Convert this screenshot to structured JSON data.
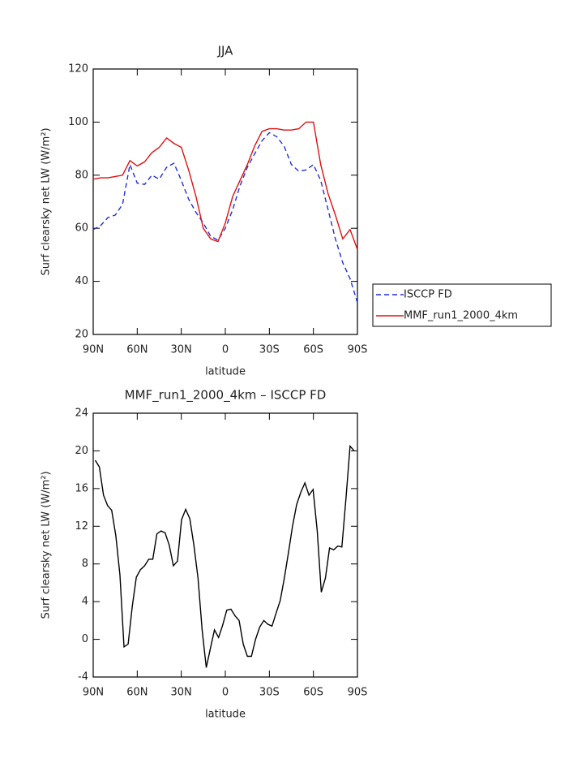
{
  "chart_data": [
    {
      "type": "line",
      "title": "JJA",
      "xlabel": "latitude",
      "ylabel": "Surf clearsky net LW (W/m²)",
      "x": [
        90,
        85,
        80,
        75,
        70,
        65,
        60,
        55,
        50,
        45,
        40,
        35,
        30,
        25,
        20,
        15,
        10,
        5,
        0,
        -5,
        -10,
        -15,
        -20,
        -25,
        -30,
        -35,
        -40,
        -45,
        -50,
        -55,
        -60,
        -65,
        -70,
        -75,
        -80,
        -85,
        -90
      ],
      "series": [
        {
          "name": "ISCCP FD",
          "color": "#1f2fd8",
          "line_style": "dashed",
          "values": [
            59.5,
            61,
            64,
            65,
            69,
            84,
            77,
            76.5,
            80,
            78.5,
            83,
            84.5,
            78,
            71,
            66,
            62,
            57,
            55.5,
            60,
            67,
            76,
            83,
            88,
            93,
            96,
            94.5,
            91,
            84,
            81.5,
            82,
            84,
            78,
            67,
            56,
            47,
            41,
            32
          ]
        },
        {
          "name": "MMF_run1_2000_4km",
          "color": "#e01010",
          "line_style": "solid",
          "values": [
            78.5,
            79,
            79,
            79.5,
            80,
            85.5,
            83.5,
            85,
            88.5,
            90.5,
            94,
            92,
            90.5,
            82,
            72,
            60,
            56,
            55,
            62,
            72,
            78,
            84,
            91,
            96.5,
            97.5,
            97.5,
            97,
            97,
            97.5,
            100,
            100,
            84,
            73,
            65,
            56,
            59.5,
            52
          ]
        }
      ],
      "xlim": [
        90,
        -90
      ],
      "xticks": [
        {
          "value": 90,
          "label": "90N"
        },
        {
          "value": 60,
          "label": "60N"
        },
        {
          "value": 30,
          "label": "30N"
        },
        0,
        {
          "value": -30,
          "label": "30S"
        },
        {
          "value": -60,
          "label": "60S"
        },
        {
          "value": -90,
          "label": "90S"
        }
      ],
      "ylim": [
        20,
        120
      ],
      "yticks": [
        20,
        40,
        60,
        80,
        100,
        120
      ],
      "legend": "outside-right"
    },
    {
      "type": "line",
      "title": "MMF_run1_2000_4km – ISCCP FD",
      "xlabel": "latitude",
      "ylabel": "Surf clearsky net LW (W/m²)",
      "x": [
        88.6,
        85.8,
        83,
        80.2,
        77.4,
        74.6,
        71.8,
        69,
        66.2,
        63.4,
        60.6,
        57.8,
        55,
        52.2,
        49.4,
        46.6,
        43.8,
        41,
        38.2,
        35.4,
        32.6,
        29.8,
        27,
        24.2,
        21.4,
        18.6,
        15.8,
        13,
        10.2,
        7.4,
        4.6,
        1.8,
        -1,
        -3.8,
        -6.6,
        -9.4,
        -12.2,
        -15,
        -17.8,
        -20.6,
        -23.4,
        -26.2,
        -29,
        -31.8,
        -34.6,
        -37.4,
        -40.2,
        -43,
        -45.8,
        -48.6,
        -51.4,
        -54.2,
        -57,
        -59.8,
        -62.6,
        -65.4,
        -68.2,
        -71,
        -73.8,
        -76.6,
        -79.4,
        -82.2,
        -85,
        -87.8
      ],
      "series": [
        {
          "name": null,
          "color": "#000000",
          "line_style": "solid",
          "values": [
            19,
            18.3,
            15.3,
            14.2,
            13.7,
            11,
            6.8,
            -0.8,
            -0.5,
            3.5,
            6.6,
            7.4,
            7.8,
            8.5,
            8.5,
            11.2,
            11.5,
            11.3,
            10,
            7.8,
            8.3,
            12.7,
            13.8,
            12.8,
            10,
            6.5,
            1,
            -3,
            -1,
            1,
            0.2,
            1.5,
            3.1,
            3.2,
            2.5,
            2,
            -0.5,
            -1.8,
            -1.8,
            0,
            1.3,
            2,
            1.6,
            1.4,
            2.8,
            4.1,
            6.5,
            9.2,
            12,
            14.3,
            15.6,
            16.6,
            15.3,
            15.9,
            11.5,
            5,
            6.5,
            9.7,
            9.5,
            9.9,
            9.8,
            15,
            20.5,
            20
          ]
        }
      ],
      "xlim": [
        90,
        -90
      ],
      "xticks": [
        {
          "value": 90,
          "label": "90N"
        },
        {
          "value": 60,
          "label": "60N"
        },
        {
          "value": 30,
          "label": "30N"
        },
        0,
        {
          "value": -30,
          "label": "30S"
        },
        {
          "value": -60,
          "label": "60S"
        },
        {
          "value": -90,
          "label": "90S"
        }
      ],
      "ylim": [
        -4,
        24
      ],
      "yticks": [
        -4,
        0,
        4,
        8,
        12,
        16,
        20,
        24
      ]
    }
  ]
}
